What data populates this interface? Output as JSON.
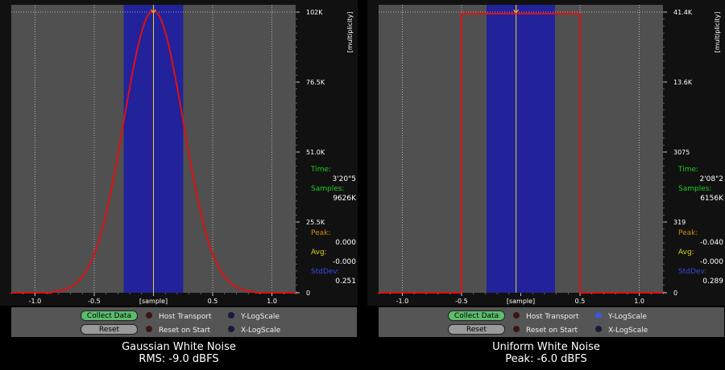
{
  "panels": [
    {
      "title": "Gaussian White Noise",
      "subtitle": "RMS: -9.0 dBFS",
      "y_axis_label": "[multiplicity]",
      "x_axis_label": "[sample]",
      "x_ticks": [
        "-1.0",
        "-0.5",
        "0",
        "0.5",
        "1.0"
      ],
      "y_ticks": [
        "102K",
        "76.5K",
        "51.0K",
        "25.5K",
        "0"
      ],
      "stats": {
        "time_label": "Time:",
        "time_value": "3'20\"5",
        "samples_label": "Samples:",
        "samples_value": "9626K",
        "peak_label": "Peak:",
        "peak_value": "0.000",
        "avg_label": "Avg:",
        "avg_value": "-0.000",
        "stddev_label": "StdDev:",
        "stddev_value": "0.251"
      },
      "controls": {
        "collect_label": "Collect Data",
        "reset_label": "Reset",
        "host_transport": "Host Transport",
        "reset_on_start": "Reset on Start",
        "y_logscale": "Y-LogScale",
        "x_logscale": "X-LogScale"
      },
      "y_logscale_on": false
    },
    {
      "title": "Uniform White Noise",
      "subtitle": "Peak: -6.0 dBFS",
      "y_axis_label": "[multiplicity]",
      "x_axis_label": "[sample]",
      "x_ticks": [
        "-1.0",
        "-0.5",
        "0",
        "0.5",
        "1.0"
      ],
      "y_ticks": [
        "41.4K",
        "13.6K",
        "3075",
        "319",
        "0"
      ],
      "stats": {
        "time_label": "Time:",
        "time_value": "2'08\"2",
        "samples_label": "Samples:",
        "samples_value": "6156K",
        "peak_label": "Peak:",
        "peak_value": "-0.040",
        "avg_label": "Avg:",
        "avg_value": "-0.000",
        "stddev_label": "StdDev:",
        "stddev_value": "0.289"
      },
      "controls": {
        "collect_label": "Collect Data",
        "reset_label": "Reset",
        "host_transport": "Host Transport",
        "reset_on_start": "Reset on Start",
        "y_logscale": "Y-LogScale",
        "x_logscale": "X-LogScale"
      },
      "y_logscale_on": true
    }
  ],
  "colors": {
    "plot_bg": "#505050",
    "stddev_band": "#22229a",
    "curve": "#e01010",
    "peak_marker": "#e8b020",
    "time_samples_label": "#22cc22",
    "peak_label": "#d08a10",
    "avg_label": "#d8d820",
    "stddev_label": "#3a48e0"
  },
  "chart_data": [
    {
      "type": "line",
      "title": "Gaussian White Noise",
      "xlabel": "[sample]",
      "ylabel": "[multiplicity]",
      "xlim": [
        -1.2,
        1.2
      ],
      "ylim": [
        0,
        104000
      ],
      "x_ticks": [
        -1.0,
        -0.5,
        0,
        0.5,
        1.0
      ],
      "y_ticks": [
        0,
        25500,
        51000,
        76500,
        102000
      ],
      "series": [
        {
          "x": [
            -1.2,
            -0.9,
            -0.8,
            -0.7,
            -0.6,
            -0.5,
            -0.4,
            -0.3,
            -0.2,
            -0.1,
            0,
            0.1,
            0.2,
            0.3,
            0.4,
            0.5,
            0.6,
            0.7,
            0.8,
            0.9,
            1.2
          ],
          "y": [
            0,
            0,
            600,
            2000,
            5800,
            13800,
            28500,
            48800,
            70800,
            92000,
            102000,
            92000,
            70800,
            48800,
            28500,
            13800,
            5800,
            2000,
            600,
            0,
            0
          ]
        }
      ],
      "stddev_band": [
        -0.251,
        0.251
      ],
      "marker_x": 0.0,
      "grid": true,
      "y_scale": "linear"
    },
    {
      "type": "line",
      "title": "Uniform White Noise",
      "xlabel": "[sample]",
      "ylabel": "[multiplicity]",
      "xlim": [
        -1.2,
        1.2
      ],
      "ylim": [
        0,
        41400
      ],
      "x_ticks": [
        -1.0,
        -0.5,
        0,
        0.5,
        1.0
      ],
      "y_ticks": [
        0,
        319,
        3075,
        13600,
        41400
      ],
      "series": [
        {
          "x": [
            -1.2,
            -0.5,
            -0.5,
            0.5,
            0.5,
            1.2
          ],
          "y": [
            0,
            0,
            41000,
            41000,
            0,
            0
          ]
        }
      ],
      "stddev_band": [
        -0.289,
        0.289
      ],
      "marker_x": -0.04,
      "grid": true,
      "y_scale": "log"
    }
  ]
}
